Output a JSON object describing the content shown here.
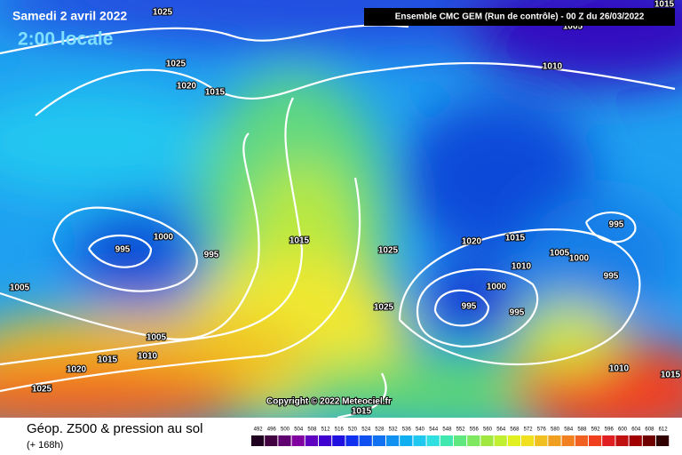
{
  "header": {
    "date": "Samedi 2 avril 2022",
    "local_time": "2:00 locale",
    "run": "Ensemble CMC GEM  (Run de contrôle)  -  00 Z du 26/03/2022"
  },
  "footer": {
    "title": "Géop. Z500 & pression au sol",
    "lead": "(+ 168h)",
    "copyright": "Copyright © 2022 Meteociel.fr"
  },
  "isobars": {
    "labels": [
      1025,
      1025,
      1020,
      1015,
      995,
      1000,
      995,
      1015,
      1025,
      1025,
      1005,
      1005,
      1010,
      1015,
      1020,
      1025,
      1005,
      1010,
      1015,
      1020,
      1015,
      1010,
      1005,
      1000,
      1000,
      995,
      995,
      995,
      995,
      1010,
      1015,
      1015
    ]
  },
  "colorbar": {
    "ticks": [
      492,
      496,
      500,
      504,
      508,
      512,
      516,
      520,
      524,
      528,
      532,
      536,
      540,
      544,
      548,
      552,
      556,
      560,
      564,
      568,
      572,
      576,
      580,
      584,
      588,
      592,
      596,
      600,
      604,
      608,
      612
    ]
  }
}
